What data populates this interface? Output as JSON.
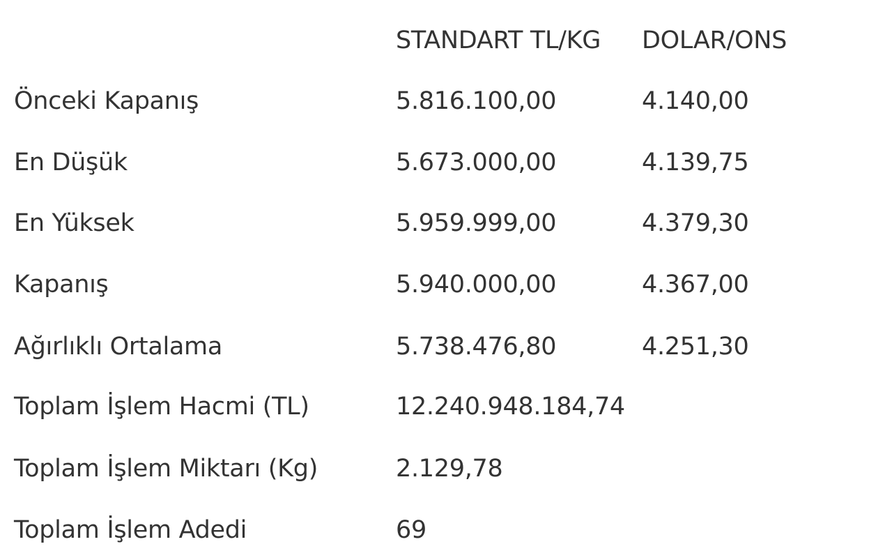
{
  "headers": [
    "",
    "STANDART TL/KG",
    "DOLAR/ONS"
  ],
  "rows": [
    {
      "label": "Önceki Kapanış",
      "tl": "5.816.100,00",
      "usd": "4.140,00"
    },
    {
      "label": "En Düşük",
      "tl": "5.673.000,00",
      "usd": "4.139,75"
    },
    {
      "label": "En Yüksek",
      "tl": "5.959.999,00",
      "usd": "4.379,30"
    },
    {
      "label": "Kapanış",
      "tl": "5.940.000,00",
      "usd": "4.367,00"
    },
    {
      "label": "Ağırlıklı Ortalama",
      "tl": "5.738.476,80",
      "usd": "4.251,30"
    },
    {
      "label": "Toplam İşlem Hacmi (TL)",
      "tl": "12.240.948.184,74",
      "usd": ""
    },
    {
      "label": "Toplam İşlem Miktarı (Kg)",
      "tl": "2.129,78",
      "usd": ""
    },
    {
      "label": "Toplam İşlem Adedi",
      "tl": "69",
      "usd": ""
    }
  ]
}
